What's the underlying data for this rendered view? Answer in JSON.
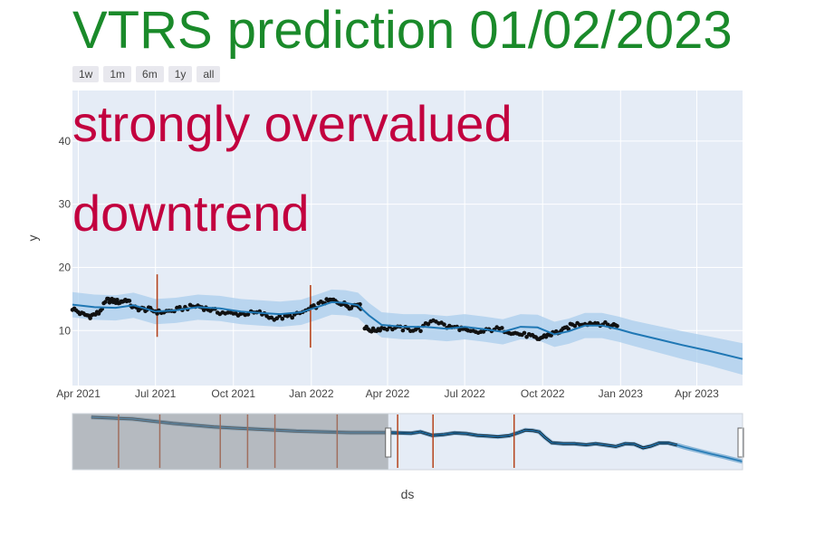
{
  "colors": {
    "title": "#1a8a2a",
    "annotation": "#c2003f",
    "plot_bg": "#e5ecf6",
    "band": "#a9cdec",
    "trend": "#1f77b4",
    "points": "#111111",
    "marker": "#b5441d",
    "slider_mask": "#8e9194"
  },
  "range_buttons": [
    "1w",
    "1m",
    "6m",
    "1y",
    "all"
  ],
  "chart_data": {
    "type": "line",
    "title": "VTRS prediction 01/02/2023",
    "xlabel": "ds",
    "ylabel": "y",
    "xlim": [
      "2021-03-25",
      "2023-05-25"
    ],
    "ylim": [
      1.3,
      48.0
    ],
    "y_ticks": [
      10,
      20,
      30,
      40
    ],
    "x_ticks": [
      {
        "date": "2021-04-01",
        "label": "Apr 2021"
      },
      {
        "date": "2021-07-01",
        "label": "Jul 2021"
      },
      {
        "date": "2021-10-01",
        "label": "Oct 2021"
      },
      {
        "date": "2022-01-01",
        "label": "Jan 2022"
      },
      {
        "date": "2022-04-01",
        "label": "Apr 2022"
      },
      {
        "date": "2022-07-01",
        "label": "Jul 2022"
      },
      {
        "date": "2022-10-01",
        "label": "Oct 2022"
      },
      {
        "date": "2023-01-01",
        "label": "Jan 2023"
      },
      {
        "date": "2023-04-01",
        "label": "Apr 2023"
      }
    ],
    "annotations": [
      "strongly overvalued",
      "downtrend"
    ],
    "forecast": {
      "x": [
        "2021-03-25",
        "2021-04-20",
        "2021-05-15",
        "2021-06-05",
        "2021-07-01",
        "2021-07-25",
        "2021-08-20",
        "2021-09-15",
        "2021-10-10",
        "2021-11-01",
        "2021-11-25",
        "2021-12-20",
        "2022-01-10",
        "2022-01-25",
        "2022-02-10",
        "2022-02-25",
        "2022-03-10",
        "2022-03-25",
        "2022-04-20",
        "2022-05-15",
        "2022-06-10",
        "2022-07-01",
        "2022-07-25",
        "2022-08-15",
        "2022-09-05",
        "2022-09-25",
        "2022-10-15",
        "2022-11-01",
        "2022-11-20",
        "2022-12-10",
        "2022-12-30",
        "2023-01-15",
        "2023-02-15",
        "2023-03-15",
        "2023-04-15",
        "2023-05-25"
      ],
      "yhat": [
        14.1,
        13.7,
        13.6,
        14.0,
        13.0,
        13.2,
        13.7,
        13.5,
        13.0,
        12.8,
        12.6,
        12.9,
        13.8,
        14.5,
        14.4,
        14.0,
        12.4,
        10.9,
        10.6,
        10.6,
        10.3,
        10.6,
        10.2,
        9.8,
        10.6,
        10.5,
        9.4,
        9.9,
        10.8,
        10.8,
        10.2,
        9.6,
        8.6,
        7.7,
        6.8,
        5.5
      ],
      "lower": [
        12.1,
        11.7,
        11.6,
        12.0,
        11.0,
        11.2,
        11.7,
        11.5,
        11.0,
        10.8,
        10.6,
        10.9,
        11.8,
        12.5,
        12.4,
        12.0,
        10.4,
        8.9,
        8.6,
        8.6,
        8.3,
        8.6,
        8.2,
        7.8,
        8.6,
        8.5,
        7.4,
        7.9,
        8.8,
        8.8,
        8.2,
        7.6,
        6.5,
        5.5,
        4.5,
        3.0
      ],
      "upper": [
        16.1,
        15.7,
        15.6,
        16.0,
        15.0,
        15.2,
        15.7,
        15.5,
        15.0,
        14.8,
        14.6,
        14.9,
        15.8,
        16.5,
        16.4,
        16.0,
        14.4,
        12.9,
        12.6,
        12.6,
        12.3,
        12.6,
        12.2,
        11.8,
        12.6,
        12.5,
        11.4,
        11.9,
        12.8,
        12.8,
        12.2,
        11.6,
        10.7,
        9.9,
        9.1,
        8.0
      ]
    },
    "actual": {
      "x": [
        "2021-03-25",
        "2021-04-05",
        "2021-04-15",
        "2021-04-25",
        "2021-05-05",
        "2021-05-12",
        "2021-05-20",
        "2021-05-28",
        "2021-06-05",
        "2021-06-15",
        "2021-06-25",
        "2021-07-05",
        "2021-07-20",
        "2021-08-05",
        "2021-08-20",
        "2021-09-01",
        "2021-09-15",
        "2021-10-01",
        "2021-10-15",
        "2021-11-01",
        "2021-11-15",
        "2021-12-01",
        "2021-12-15",
        "2022-01-01",
        "2022-01-15",
        "2022-01-25",
        "2022-02-05",
        "2022-02-15",
        "2022-02-25",
        "2022-03-01",
        "2022-03-05",
        "2022-03-15",
        "2022-03-25",
        "2022-04-10",
        "2022-04-25",
        "2022-05-10",
        "2022-05-25",
        "2022-06-10",
        "2022-06-25",
        "2022-07-05",
        "2022-07-20",
        "2022-08-05",
        "2022-08-20",
        "2022-09-01",
        "2022-09-15",
        "2022-09-25",
        "2022-10-05",
        "2022-10-15",
        "2022-10-25",
        "2022-11-05",
        "2022-11-20",
        "2022-12-05",
        "2022-12-20",
        "2022-12-30"
      ],
      "y": [
        13.5,
        12.6,
        12.3,
        12.8,
        14.8,
        14.7,
        14.5,
        14.9,
        13.6,
        13.4,
        13.3,
        12.9,
        13.1,
        13.6,
        13.9,
        13.4,
        12.9,
        12.6,
        12.7,
        12.8,
        12.0,
        12.1,
        12.5,
        13.5,
        14.5,
        14.8,
        14.4,
        13.8,
        14.2,
        13.6,
        10.4,
        10.0,
        10.4,
        10.4,
        10.2,
        10.2,
        11.8,
        10.6,
        10.4,
        9.8,
        9.7,
        10.3,
        10.0,
        9.5,
        9.2,
        8.6,
        9.2,
        9.6,
        10.0,
        10.9,
        11.2,
        11.2,
        10.8,
        11.0
      ]
    },
    "markers": [
      "2021-07-03",
      "2021-12-31"
    ]
  },
  "slider": {
    "markers": [
      "2019-08-01",
      "2019-11-01",
      "2020-03-15",
      "2020-05-15",
      "2020-07-15",
      "2020-12-01",
      "2021-04-15",
      "2021-07-03",
      "2021-12-31"
    ],
    "window": [
      "2021-03-25",
      "2023-05-25"
    ]
  }
}
